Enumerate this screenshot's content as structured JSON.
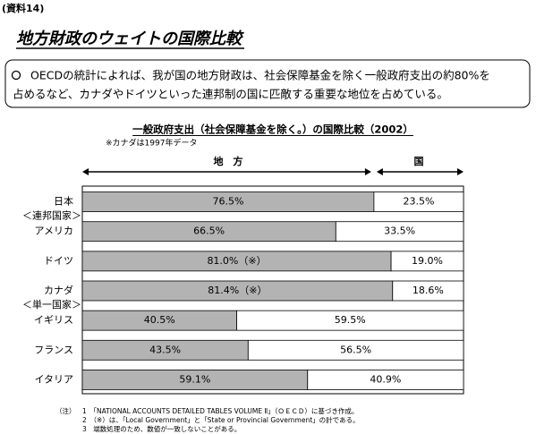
{
  "doc_label": "(資料14)",
  "heading": "地方財政のウェイトの国際比較",
  "summary": {
    "lines": [
      "OECDの統計によれば、我が国の地方財政は、社会保障基金を除く一般政府支出の約80%を",
      "占めるなど、カナダやドイツといった連邦制の国に匹敵する重要な地位を占めている。"
    ]
  },
  "chart_data": {
    "type": "stacked_bar_horizontal",
    "title": "一般政府支出（社会保障基金を除く。）の国際比較（2002）",
    "subtitle": "※カナダは1997年データ",
    "categories": [
      "日本",
      "アメリカ",
      "ドイツ",
      "カナダ",
      "イギリス",
      "フランス",
      "イタリア"
    ],
    "category_notes": [
      null,
      "＜連邦国家＞",
      null,
      null,
      "＜単一国家＞",
      null,
      null
    ],
    "xlim": [
      0,
      100
    ],
    "series": [
      {
        "name": "地　方",
        "color": "#b3b3b3",
        "values": [
          76.5,
          66.5,
          81.0,
          81.4,
          40.5,
          43.5,
          59.1
        ],
        "value_labels": [
          "76.5%",
          "66.5%",
          "81.0%（※）",
          "81.4%（※）",
          "40.5%",
          "43.5%",
          "59.1%"
        ]
      },
      {
        "name": "国",
        "color": "#ffffff",
        "values": [
          23.5,
          33.5,
          19.0,
          18.6,
          59.5,
          56.5,
          40.9
        ],
        "value_labels": [
          "23.5%",
          "33.5%",
          "19.0%",
          "18.6%",
          "59.5%",
          "56.5%",
          "40.9%"
        ]
      }
    ]
  },
  "notes_label": "（注）",
  "notes": [
    "1　「NATIONAL ACCOUNTS DETAILED TABLES VOLUME Ⅱ」（ＯＥＣＤ）に基づき作成。",
    "2　（※）は、「Local Government」と「State or Provincial Government」の計である。",
    "3　端数処理のため、数値が一致しないことがある。"
  ]
}
